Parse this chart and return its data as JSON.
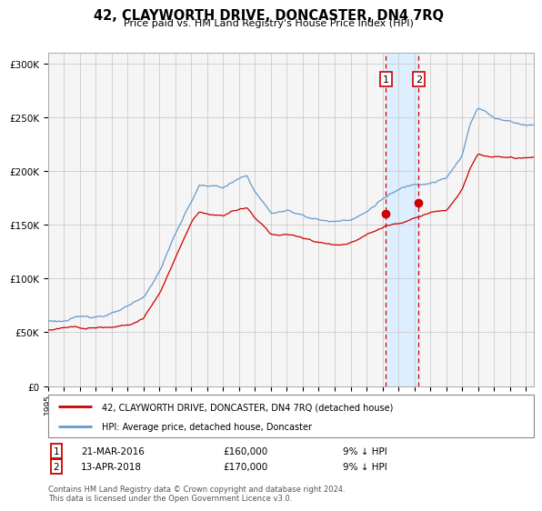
{
  "title": "42, CLAYWORTH DRIVE, DONCASTER, DN4 7RQ",
  "subtitle": "Price paid vs. HM Land Registry's House Price Index (HPI)",
  "legend_line1": "42, CLAYWORTH DRIVE, DONCASTER, DN4 7RQ (detached house)",
  "legend_line2": "HPI: Average price, detached house, Doncaster",
  "sale1_label": "1",
  "sale1_date": "21-MAR-2016",
  "sale1_price": "£160,000",
  "sale1_hpi": "9% ↓ HPI",
  "sale2_label": "2",
  "sale2_date": "13-APR-2018",
  "sale2_price": "£170,000",
  "sale2_hpi": "9% ↓ HPI",
  "footer": "Contains HM Land Registry data © Crown copyright and database right 2024.\nThis data is licensed under the Open Government Licence v3.0.",
  "sale1_year": 2016.22,
  "sale1_value": 160000,
  "sale2_year": 2018.28,
  "sale2_value": 170000,
  "red_color": "#cc0000",
  "blue_color": "#6699cc",
  "shade_color": "#ddeeff",
  "grid_color": "#cccccc",
  "bg_color": "#f5f5f5",
  "ylim": [
    0,
    310000
  ],
  "xlim_start": 1995.0,
  "xlim_end": 2025.5,
  "hpi_key_years": [
    1995,
    1996,
    1997,
    1998,
    1999,
    2000,
    2001,
    2002,
    2003,
    2004,
    2004.5,
    2005,
    2006,
    2007,
    2007.5,
    2008,
    2009,
    2010,
    2011,
    2012,
    2013,
    2014,
    2015,
    2016,
    2017,
    2018,
    2019,
    2020,
    2021,
    2021.5,
    2022,
    2022.5,
    2023,
    2023.5,
    2024,
    2025,
    2025.5
  ],
  "hpi_key_vals": [
    60000,
    61000,
    63000,
    65000,
    68000,
    72000,
    80000,
    105000,
    140000,
    170000,
    185000,
    185000,
    183000,
    190000,
    192000,
    178000,
    158000,
    160000,
    157000,
    153000,
    151000,
    155000,
    162000,
    175000,
    182000,
    188000,
    192000,
    196000,
    215000,
    245000,
    262000,
    258000,
    252000,
    251000,
    250000,
    248000,
    248000
  ],
  "red_key_years": [
    1995,
    1996,
    1997,
    1998,
    1999,
    2000,
    2001,
    2002,
    2003,
    2004,
    2004.5,
    2005,
    2006,
    2007,
    2007.5,
    2008,
    2009,
    2010,
    2011,
    2012,
    2013,
    2014,
    2015,
    2016.2,
    2017,
    2018.3,
    2019,
    2020,
    2021,
    2021.5,
    2022,
    2022.5,
    2023,
    2023.5,
    2024,
    2025,
    2025.5
  ],
  "red_key_vals": [
    52000,
    53000,
    55000,
    57000,
    59000,
    62000,
    68000,
    92000,
    125000,
    158000,
    168000,
    167000,
    165000,
    172000,
    173000,
    163000,
    148000,
    148000,
    145000,
    142000,
    140000,
    143000,
    150000,
    160000,
    163000,
    170000,
    173000,
    175000,
    195000,
    215000,
    228000,
    225000,
    225000,
    225000,
    224000,
    223000,
    223000
  ]
}
